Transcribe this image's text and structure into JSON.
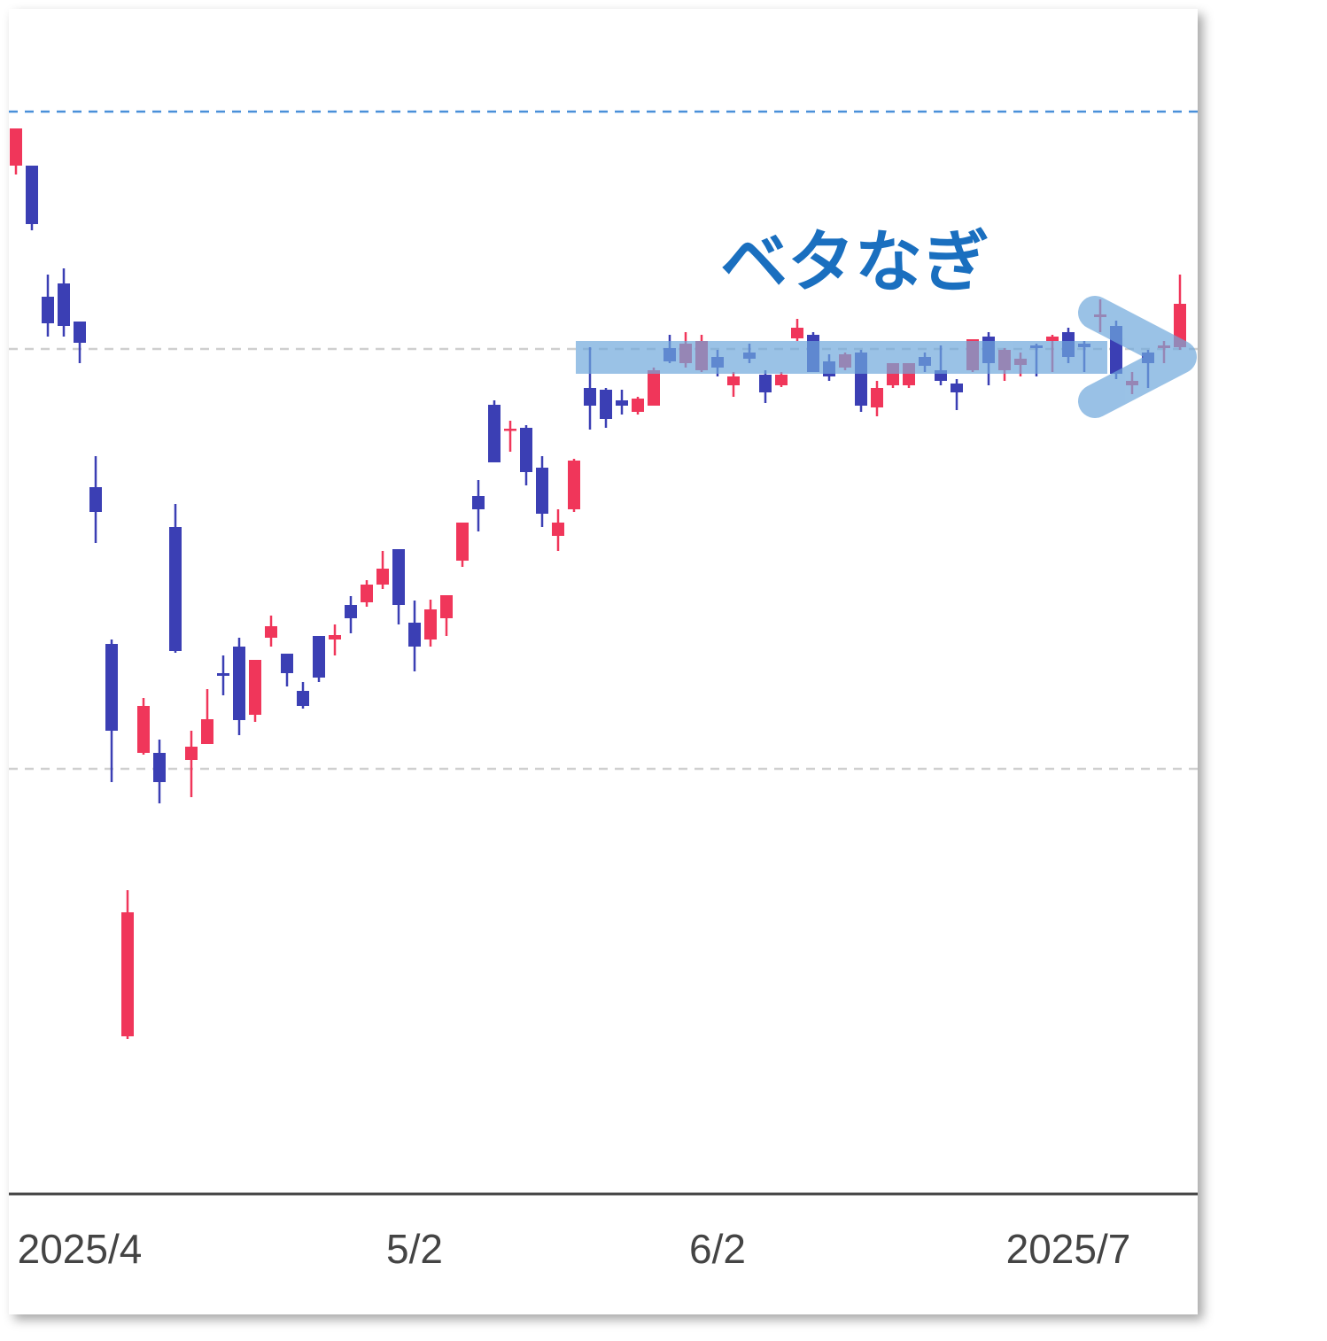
{
  "chart_data": {
    "type": "candlestick",
    "annotation": "ベタなぎ",
    "categories": [
      null,
      null,
      null,
      null,
      "2025/4",
      null,
      null,
      null,
      null,
      null,
      null,
      null,
      null,
      null,
      null,
      null,
      null,
      null,
      null,
      null,
      null,
      null,
      null,
      null,
      null,
      "5/2",
      null,
      null,
      null,
      null,
      null,
      null,
      null,
      null,
      null,
      null,
      null,
      null,
      null,
      null,
      null,
      null,
      null,
      null,
      "6/2",
      null,
      null,
      null,
      null,
      null,
      null,
      null,
      null,
      null,
      null,
      null,
      null,
      null,
      null,
      null,
      null,
      null,
      null,
      null,
      null,
      null,
      "2025/7",
      null,
      null,
      null,
      null,
      null,
      null,
      null
    ],
    "open": [
      115.9,
      115.9,
      101.1,
      102.6,
      98.3,
      79.6,
      61.9,
      17.6,
      49.6,
      49.6,
      75.1,
      48.8,
      50.6,
      58.6,
      61.6,
      53.9,
      62.6,
      60.8,
      56.6,
      62.8,
      62.4,
      66.3,
      66.6,
      68.6,
      72.6,
      64.3,
      62.4,
      64.8,
      71.3,
      78.6,
      88.9,
      86.0,
      86.3,
      81.8,
      74.1,
      77.1,
      90.8,
      90.6,
      89.4,
      88.1,
      88.8,
      95.3,
      93.6,
      92.8,
      94.3,
      91.1,
      94.8,
      92.3,
      91.1,
      96.4,
      96.8,
      93.8,
      93.1,
      94.8,
      88.6,
      91.1,
      91.1,
      94.3,
      92.8,
      91.3,
      92.8,
      96.6,
      92.8,
      93.4,
      95.6,
      96.1,
      97.1,
      95.8,
      98.8,
      97.8,
      91.1,
      94.8,
      95.3,
      95.4
    ],
    "high": [
      120.1,
      115.9,
      103.6,
      104.3,
      98.3,
      83.1,
      62.4,
      34.1,
      55.8,
      51.1,
      77.7,
      52.1,
      56.8,
      60.6,
      62.6,
      60.1,
      65.1,
      60.8,
      57.6,
      62.8,
      64.1,
      67.3,
      69.1,
      72.4,
      72.6,
      66.8,
      66.9,
      67.4,
      75.6,
      80.4,
      89.4,
      87.1,
      86.6,
      83.1,
      77.1,
      82.8,
      95.4,
      90.8,
      90.6,
      89.8,
      93.1,
      96.8,
      97.1,
      96.8,
      95.1,
      92.6,
      95.8,
      92.8,
      92.6,
      98.6,
      97.1,
      94.6,
      94.8,
      95.1,
      91.6,
      93.6,
      93.6,
      94.8,
      95.6,
      91.8,
      96.3,
      97.1,
      95.3,
      94.8,
      95.8,
      96.8,
      97.6,
      96.1,
      100.8,
      98.4,
      92.6,
      95.1,
      96.1,
      103.6
    ],
    "low": [
      114.9,
      108.6,
      96.6,
      96.6,
      93.6,
      73.3,
      46.3,
      17.3,
      49.4,
      43.9,
      60.9,
      44.6,
      50.6,
      56.1,
      51.6,
      53.1,
      61.6,
      57.1,
      54.6,
      57.6,
      60.6,
      63.1,
      66.1,
      68.1,
      64.1,
      58.8,
      61.6,
      62.8,
      70.6,
      74.6,
      82.4,
      83.6,
      79.8,
      75.1,
      72.4,
      76.8,
      86.1,
      86.3,
      87.8,
      87.8,
      88.8,
      93.6,
      93.1,
      92.6,
      92.1,
      89.8,
      93.6,
      89.1,
      90.9,
      96.1,
      92.6,
      91.6,
      92.8,
      88.1,
      87.6,
      90.8,
      90.8,
      92.6,
      91.1,
      88.3,
      92.6,
      91.1,
      91.6,
      92.1,
      92.1,
      92.6,
      93.6,
      92.6,
      97.1,
      91.8,
      90.1,
      90.8,
      93.6,
      95.1
    ],
    "close": [
      120.1,
      109.3,
      98.1,
      97.8,
      95.9,
      76.8,
      52.1,
      31.6,
      54.9,
      46.3,
      61.1,
      50.3,
      53.4,
      58.3,
      53.3,
      60.1,
      63.9,
      58.6,
      54.9,
      58.1,
      62.9,
      64.8,
      68.6,
      70.4,
      66.3,
      61.6,
      65.8,
      67.4,
      75.6,
      77.1,
      82.4,
      86.2,
      81.3,
      76.6,
      75.6,
      82.6,
      88.8,
      87.3,
      88.8,
      89.6,
      92.8,
      93.8,
      95.8,
      96.1,
      93.1,
      92.1,
      94.1,
      90.3,
      92.3,
      97.6,
      92.6,
      92.1,
      94.6,
      88.8,
      90.8,
      93.6,
      93.6,
      93.3,
      91.6,
      90.3,
      96.3,
      93.6,
      95.1,
      94.1,
      95.3,
      96.6,
      94.3,
      95.4,
      99.1,
      92.4,
      91.6,
      93.6,
      95.6,
      100.3
    ],
    "up_color": "#f0365a",
    "down_color": "#3b3fb4",
    "ylim": [
      0,
      133.6
    ],
    "gridlines": [
      95.2,
      47.8
    ],
    "reference_line": 122.0
  }
}
